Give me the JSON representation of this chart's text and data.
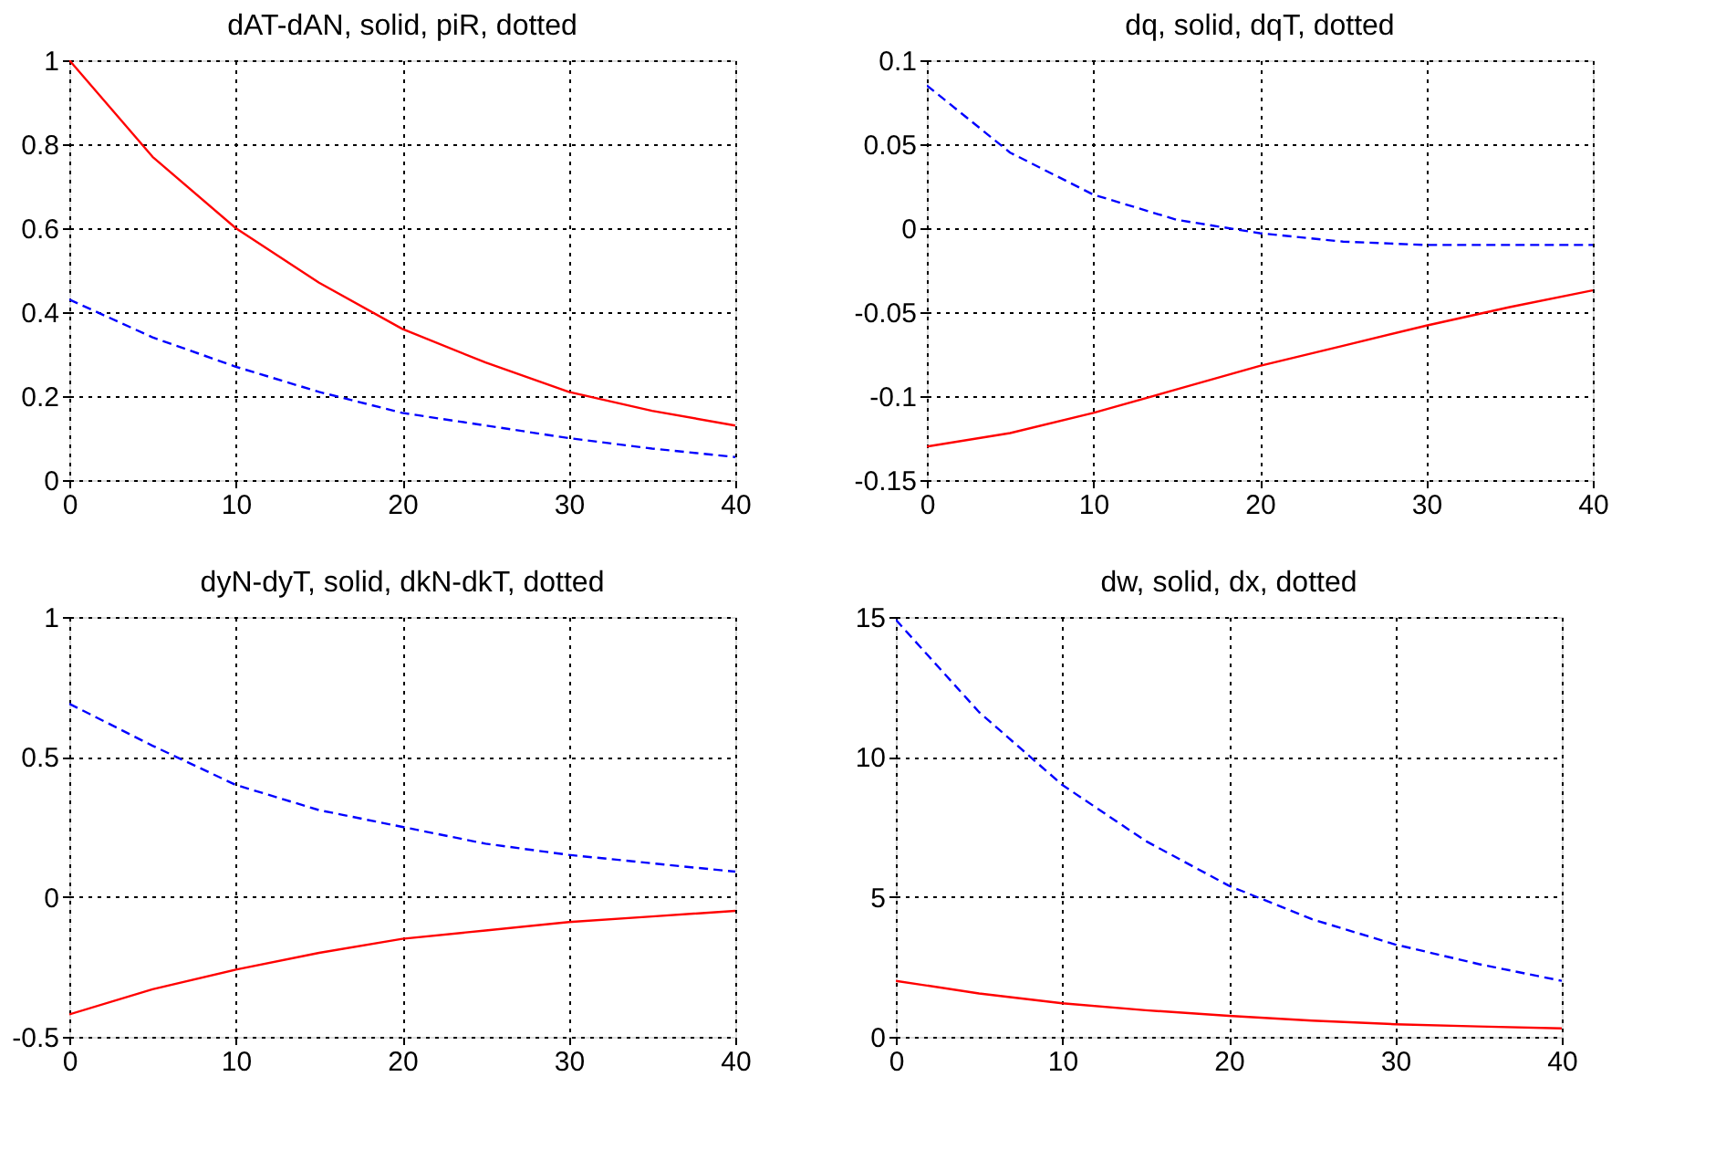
{
  "chart_data": [
    {
      "type": "line",
      "title": "dAT-dAN, solid, piR, dotted",
      "x": [
        0,
        5,
        10,
        15,
        20,
        25,
        30,
        35,
        40
      ],
      "xlim": [
        0,
        40
      ],
      "xticks": [
        0,
        10,
        20,
        30,
        40
      ],
      "ylim": [
        0,
        1
      ],
      "yticks": [
        0,
        0.2,
        0.4,
        0.6,
        0.8,
        1
      ],
      "grid": true,
      "series": [
        {
          "color": "#ff0000",
          "line_style": "solid",
          "values": [
            1.0,
            0.77,
            0.6,
            0.47,
            0.36,
            0.28,
            0.21,
            0.165,
            0.13
          ]
        },
        {
          "color": "#0000ff",
          "line_style": "dashed",
          "values": [
            0.43,
            0.34,
            0.27,
            0.21,
            0.16,
            0.13,
            0.1,
            0.075,
            0.055
          ]
        }
      ]
    },
    {
      "type": "line",
      "title": "dq, solid, dqT, dotted",
      "x": [
        0,
        5,
        10,
        15,
        20,
        25,
        30,
        35,
        40
      ],
      "xlim": [
        0,
        40
      ],
      "xticks": [
        0,
        10,
        20,
        30,
        40
      ],
      "ylim": [
        -0.15,
        0.1
      ],
      "yticks": [
        -0.15,
        -0.1,
        -0.05,
        0,
        0.05,
        0.1
      ],
      "grid": true,
      "series": [
        {
          "color": "#ff0000",
          "line_style": "solid",
          "values": [
            -0.13,
            -0.122,
            -0.11,
            -0.096,
            -0.082,
            -0.07,
            -0.058,
            -0.047,
            -0.037
          ]
        },
        {
          "color": "#0000ff",
          "line_style": "dashed",
          "values": [
            0.085,
            0.045,
            0.02,
            0.005,
            -0.003,
            -0.008,
            -0.01,
            -0.01,
            -0.01
          ]
        }
      ]
    },
    {
      "type": "line",
      "title": "dyN-dyT, solid, dkN-dkT, dotted",
      "x": [
        0,
        5,
        10,
        15,
        20,
        25,
        30,
        35,
        40
      ],
      "xlim": [
        0,
        40
      ],
      "xticks": [
        0,
        10,
        20,
        30,
        40
      ],
      "ylim": [
        -0.5,
        1
      ],
      "yticks": [
        -0.5,
        0,
        0.5,
        1
      ],
      "grid": true,
      "series": [
        {
          "color": "#ff0000",
          "line_style": "solid",
          "values": [
            -0.42,
            -0.33,
            -0.26,
            -0.2,
            -0.15,
            -0.12,
            -0.09,
            -0.07,
            -0.05
          ]
        },
        {
          "color": "#0000ff",
          "line_style": "dashed",
          "values": [
            0.69,
            0.54,
            0.4,
            0.31,
            0.25,
            0.19,
            0.15,
            0.12,
            0.09
          ]
        }
      ]
    },
    {
      "type": "line",
      "title": "dw, solid, dx, dotted",
      "x": [
        0,
        5,
        10,
        15,
        20,
        25,
        30,
        35,
        40
      ],
      "xlim": [
        0,
        40
      ],
      "xticks": [
        0,
        10,
        20,
        30,
        40
      ],
      "ylim": [
        0,
        15
      ],
      "yticks": [
        0,
        5,
        10,
        15
      ],
      "grid": true,
      "series": [
        {
          "color": "#ff0000",
          "line_style": "solid",
          "values": [
            2.0,
            1.55,
            1.2,
            0.95,
            0.75,
            0.58,
            0.45,
            0.37,
            0.3
          ]
        },
        {
          "color": "#0000ff",
          "line_style": "dashed",
          "values": [
            14.9,
            11.6,
            9.0,
            7.0,
            5.4,
            4.2,
            3.3,
            2.6,
            2.0
          ]
        }
      ]
    }
  ]
}
